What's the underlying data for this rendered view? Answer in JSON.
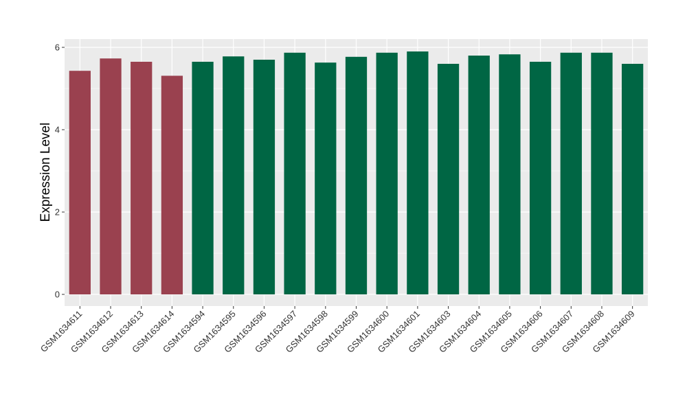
{
  "chart_data": {
    "type": "bar",
    "title": "",
    "xlabel": "",
    "ylabel": "Expression Level",
    "ylim": [
      0,
      6.2
    ],
    "yticks": [
      "0",
      "2",
      "4",
      "6"
    ],
    "grid": true,
    "legend": "none",
    "categories": [
      "GSM1634611",
      "GSM1634612",
      "GSM1634613",
      "GSM1634614",
      "GSM1634594",
      "GSM1634595",
      "GSM1634596",
      "GSM1634597",
      "GSM1634598",
      "GSM1634599",
      "GSM1634600",
      "GSM1634601",
      "GSM1634603",
      "GSM1634604",
      "GSM1634605",
      "GSM1634606",
      "GSM1634607",
      "GSM1634608",
      "GSM1634609"
    ],
    "values": [
      5.43,
      5.73,
      5.65,
      5.31,
      5.65,
      5.78,
      5.7,
      5.87,
      5.63,
      5.77,
      5.87,
      5.9,
      5.6,
      5.8,
      5.83,
      5.65,
      5.87,
      5.87,
      5.6
    ],
    "groups": [
      "g1",
      "g1",
      "g1",
      "g1",
      "g2",
      "g2",
      "g2",
      "g2",
      "g2",
      "g2",
      "g2",
      "g2",
      "g2",
      "g2",
      "g2",
      "g2",
      "g2",
      "g2",
      "g2"
    ],
    "colors": {
      "g1": "#9a414f",
      "g2": "#006644"
    },
    "panel_background": "#ebebeb",
    "grid_color": "#ffffff"
  }
}
